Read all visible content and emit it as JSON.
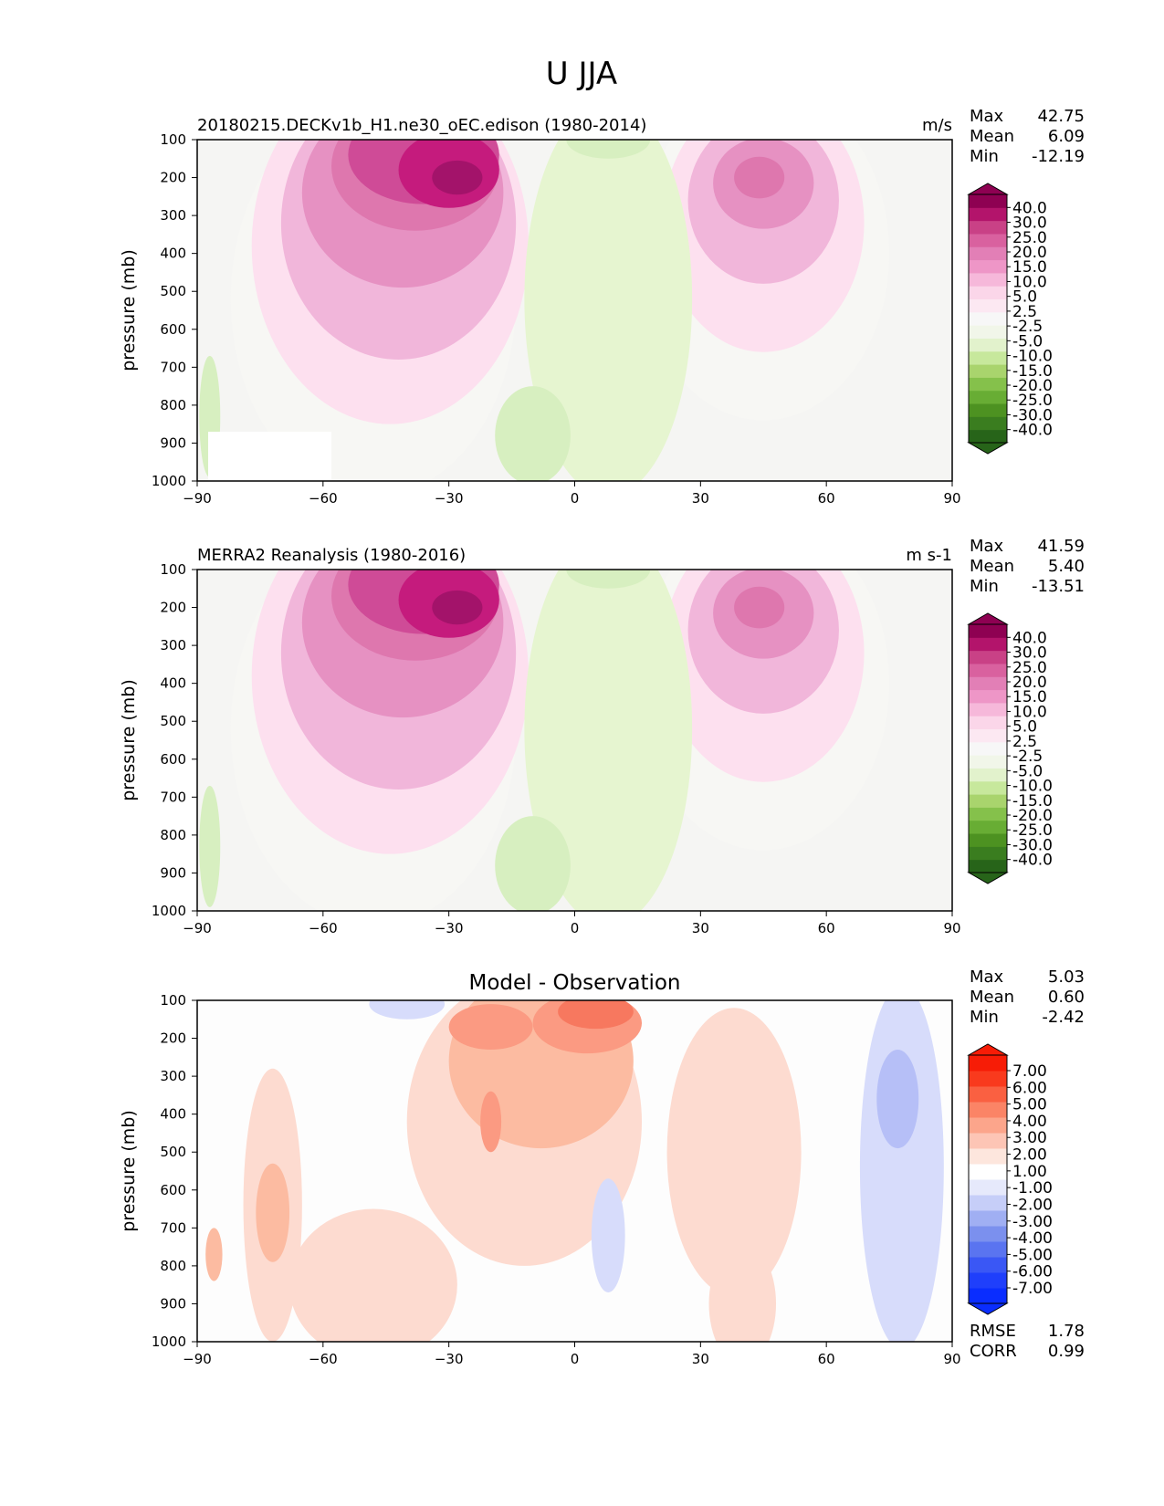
{
  "figure": {
    "title": "U JJA"
  },
  "colors": {
    "upper_levels": [
      "#f5f5f3",
      "#f7f7f4",
      "#fde0ef",
      "#f1b6da",
      "#e691c2",
      "#de77ae",
      "#cf4b97",
      "#c51b7d",
      "#a3136a",
      "#8e0152"
    ],
    "lower_levels": [
      "#f0f4e8",
      "#e6f5d0",
      "#d7efc0",
      "#c7e7a0",
      "#a5d46a"
    ],
    "diff_pos": [
      "#fddbd0",
      "#fcbba1",
      "#fb9a82",
      "#f7785f"
    ],
    "diff_neg": [
      "#d7dcfb",
      "#b6bff7"
    ],
    "cb_main": [
      "#276419",
      "#3a7d1f",
      "#4d9221",
      "#68ad34",
      "#85c14b",
      "#a9d46d",
      "#c7e89c",
      "#e2f2cc",
      "#f1f6e9",
      "#f7f7f7",
      "#fce8f2",
      "#fbd6e9",
      "#f6b8da",
      "#ee96c7",
      "#e27fb6",
      "#d9619f",
      "#c94186",
      "#b3146b",
      "#8e0152"
    ],
    "cb_diff": [
      "#0a2dff",
      "#1f3ffb",
      "#3a57f5",
      "#5a74f0",
      "#7b90ee",
      "#a0aff3",
      "#c6cef8",
      "#e6e9fb",
      "#ffffff",
      "#fde6dd",
      "#fdc5b5",
      "#fca58b",
      "#fb8466",
      "#fa6041",
      "#f93a1d",
      "#f71c06"
    ]
  },
  "chart_data": [
    {
      "type": "contourf",
      "panel": "model",
      "title_left": "20180215.DECKv1b_H1.ne30_oEC.edison (1980-2014)",
      "title_center": "",
      "units": "m/s",
      "ylabel": "pressure (mb)",
      "xlim": [
        -90,
        90
      ],
      "ylim": [
        100,
        1000
      ],
      "xticks": [
        "−90",
        "−60",
        "−30",
        "0",
        "30",
        "60",
        "90"
      ],
      "xtick_values": [
        -90,
        -60,
        -30,
        0,
        30,
        60,
        90
      ],
      "yticks": [
        "100",
        "200",
        "300",
        "400",
        "500",
        "600",
        "700",
        "800",
        "900",
        "1000"
      ],
      "ytick_values": [
        100,
        200,
        300,
        400,
        500,
        600,
        700,
        800,
        900,
        1000
      ],
      "stats": [
        {
          "label": "Max",
          "value": "42.75"
        },
        {
          "label": "Mean",
          "value": "6.09"
        },
        {
          "label": "Min",
          "value": "-12.19"
        }
      ],
      "colorbar_ticks": [
        "40.0",
        "30.0",
        "25.0",
        "20.0",
        "15.0",
        "10.0",
        "5.0",
        "2.5",
        "-2.5",
        "-5.0",
        "-10.0",
        "-15.0",
        "-20.0",
        "-25.0",
        "-30.0",
        "-40.0"
      ],
      "extra_stats": []
    },
    {
      "type": "contourf",
      "panel": "reference",
      "title_left": "MERRA2 Reanalysis (1980-2016)",
      "title_center": "",
      "units": "m s-1",
      "ylabel": "pressure (mb)",
      "xlim": [
        -90,
        90
      ],
      "ylim": [
        100,
        1000
      ],
      "xticks": [
        "−90",
        "−60",
        "−30",
        "0",
        "30",
        "60",
        "90"
      ],
      "xtick_values": [
        -90,
        -60,
        -30,
        0,
        30,
        60,
        90
      ],
      "yticks": [
        "100",
        "200",
        "300",
        "400",
        "500",
        "600",
        "700",
        "800",
        "900",
        "1000"
      ],
      "ytick_values": [
        100,
        200,
        300,
        400,
        500,
        600,
        700,
        800,
        900,
        1000
      ],
      "stats": [
        {
          "label": "Max",
          "value": "41.59"
        },
        {
          "label": "Mean",
          "value": "5.40"
        },
        {
          "label": "Min",
          "value": "-13.51"
        }
      ],
      "colorbar_ticks": [
        "40.0",
        "30.0",
        "25.0",
        "20.0",
        "15.0",
        "10.0",
        "5.0",
        "2.5",
        "-2.5",
        "-5.0",
        "-10.0",
        "-15.0",
        "-20.0",
        "-25.0",
        "-30.0",
        "-40.0"
      ],
      "extra_stats": []
    },
    {
      "type": "contourf",
      "panel": "difference",
      "title_left": "",
      "title_center": "Model - Observation",
      "units": "",
      "ylabel": "pressure (mb)",
      "xlim": [
        -90,
        90
      ],
      "ylim": [
        100,
        1000
      ],
      "xticks": [
        "−90",
        "−60",
        "−30",
        "0",
        "30",
        "60",
        "90"
      ],
      "xtick_values": [
        -90,
        -60,
        -30,
        0,
        30,
        60,
        90
      ],
      "yticks": [
        "100",
        "200",
        "300",
        "400",
        "500",
        "600",
        "700",
        "800",
        "900",
        "1000"
      ],
      "ytick_values": [
        100,
        200,
        300,
        400,
        500,
        600,
        700,
        800,
        900,
        1000
      ],
      "stats": [
        {
          "label": "Max",
          "value": "5.03"
        },
        {
          "label": "Mean",
          "value": "0.60"
        },
        {
          "label": "Min",
          "value": "-2.42"
        }
      ],
      "colorbar_ticks": [
        "7.00",
        "6.00",
        "5.00",
        "4.00",
        "3.00",
        "2.00",
        "1.00",
        "-1.00",
        "-2.00",
        "-3.00",
        "-4.00",
        "-5.00",
        "-6.00",
        "-7.00"
      ],
      "extra_stats": [
        {
          "label": "RMSE",
          "value": "1.78"
        },
        {
          "label": "CORR",
          "value": "0.99"
        }
      ]
    }
  ]
}
